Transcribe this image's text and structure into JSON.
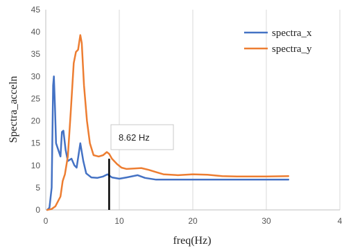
{
  "chart_data": {
    "type": "line",
    "xlabel": "freq(Hz)",
    "ylabel": "Spectra_acceln",
    "xlim": [
      0,
      40
    ],
    "ylim": [
      0,
      45
    ],
    "xticks": [
      "0",
      "10",
      "20",
      "30",
      "4"
    ],
    "yticks": [
      "0",
      "5",
      "10",
      "15",
      "20",
      "25",
      "30",
      "35",
      "40",
      "45"
    ],
    "grid": "vertical",
    "legend_position": "top-right",
    "series": [
      {
        "name": "spectra_x",
        "color": "#4472C4",
        "points": [
          [
            0.2,
            0
          ],
          [
            0.5,
            0.5
          ],
          [
            0.8,
            5
          ],
          [
            1.0,
            28
          ],
          [
            1.1,
            30
          ],
          [
            1.25,
            23
          ],
          [
            1.4,
            15
          ],
          [
            1.7,
            13.5
          ],
          [
            2.0,
            12
          ],
          [
            2.2,
            17.5
          ],
          [
            2.4,
            17.8
          ],
          [
            2.7,
            13.5
          ],
          [
            3.0,
            11
          ],
          [
            3.5,
            11.5
          ],
          [
            3.9,
            10
          ],
          [
            4.2,
            9.5
          ],
          [
            4.7,
            15
          ],
          [
            5.1,
            11
          ],
          [
            5.5,
            8.2
          ],
          [
            6.2,
            7.3
          ],
          [
            7.0,
            7.2
          ],
          [
            7.8,
            7.5
          ],
          [
            8.4,
            8
          ],
          [
            9.0,
            7.3
          ],
          [
            10.0,
            7.0
          ],
          [
            11.0,
            7.3
          ],
          [
            12.5,
            7.8
          ],
          [
            13.5,
            7.2
          ],
          [
            15,
            6.8
          ],
          [
            20,
            6.8
          ],
          [
            25,
            6.8
          ],
          [
            30,
            6.8
          ],
          [
            33,
            6.8
          ]
        ]
      },
      {
        "name": "spectra_y",
        "color": "#ED7D31",
        "points": [
          [
            0.2,
            0
          ],
          [
            0.8,
            0.2
          ],
          [
            1.3,
            0.8
          ],
          [
            2.0,
            3
          ],
          [
            2.3,
            6.5
          ],
          [
            2.6,
            8
          ],
          [
            3.0,
            12
          ],
          [
            3.4,
            22
          ],
          [
            3.8,
            33
          ],
          [
            4.1,
            35.5
          ],
          [
            4.4,
            36
          ],
          [
            4.7,
            39.3
          ],
          [
            4.9,
            37.5
          ],
          [
            5.2,
            28
          ],
          [
            5.6,
            20
          ],
          [
            6.0,
            15
          ],
          [
            6.5,
            12.3
          ],
          [
            7.2,
            12.0
          ],
          [
            7.8,
            12.3
          ],
          [
            8.3,
            13.0
          ],
          [
            8.62,
            12.6
          ],
          [
            9.0,
            11.5
          ],
          [
            9.7,
            10.3
          ],
          [
            10.3,
            9.5
          ],
          [
            11,
            9.2
          ],
          [
            12,
            9.3
          ],
          [
            13,
            9.4
          ],
          [
            14,
            9.0
          ],
          [
            15,
            8.5
          ],
          [
            16,
            8.0
          ],
          [
            18,
            7.8
          ],
          [
            20,
            8.0
          ],
          [
            22,
            7.9
          ],
          [
            24,
            7.6
          ],
          [
            26,
            7.5
          ],
          [
            30,
            7.5
          ],
          [
            33,
            7.6
          ]
        ]
      }
    ],
    "annotation": {
      "text": "8.62 Hz",
      "x": 8.62,
      "y_top": 11.5
    }
  }
}
